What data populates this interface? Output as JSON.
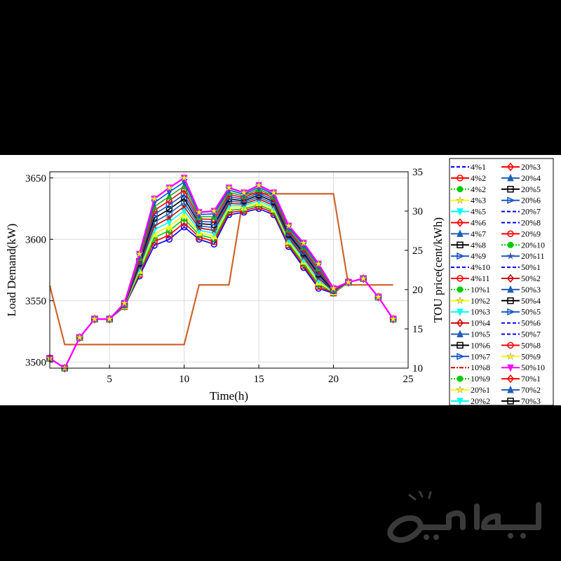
{
  "chart_data": {
    "type": "line",
    "xlabel": "Time(h)",
    "ylabel_left": "Load Demand(kW)",
    "ylabel_right": "TOU price(cent/kWh)",
    "xlim": [
      1,
      25
    ],
    "ylim_left": [
      3495,
      3655
    ],
    "ylim_right": [
      10,
      35
    ],
    "xticks": [
      5,
      10,
      15,
      20,
      25
    ],
    "yticks_left": [
      3500,
      3550,
      3600,
      3650
    ],
    "yticks_right": [
      10,
      15,
      20,
      25,
      30,
      35
    ],
    "grid": true,
    "legend_position": "right",
    "hours": [
      1,
      2,
      3,
      4,
      5,
      6,
      7,
      8,
      9,
      10,
      11,
      12,
      13,
      14,
      15,
      16,
      17,
      18,
      19,
      20,
      21,
      22,
      23,
      24
    ],
    "tou_price": {
      "x": [
        1,
        2,
        10,
        11,
        13,
        14,
        20,
        21,
        24
      ],
      "y": [
        20.5,
        13,
        13,
        20.6,
        20.6,
        32.2,
        32.2,
        20.6,
        20.6
      ],
      "color": "#d0652d"
    },
    "load_envelope": {
      "lower": [
        3503,
        3495,
        3520,
        3535,
        3535,
        3545,
        3570,
        3595,
        3600,
        3610,
        3600,
        3596,
        3620,
        3622,
        3625,
        3620,
        3594,
        3577,
        3560,
        3556,
        3565,
        3568,
        3553,
        3535
      ],
      "upper": [
        3503,
        3495,
        3520,
        3535,
        3535,
        3548,
        3588,
        3633,
        3642,
        3650,
        3622,
        3623,
        3642,
        3638,
        3644,
        3638,
        3611,
        3597,
        3580,
        3560,
        3565,
        3568,
        3553,
        3535
      ],
      "highlight": [
        3503,
        3495,
        3520,
        3535,
        3535,
        3548,
        3588,
        3633,
        3642,
        3650,
        3622,
        3623,
        3642,
        3638,
        3644,
        3638,
        3611,
        3597,
        3580,
        3560,
        3565,
        3568,
        3553,
        3535
      ],
      "highlight_color": "#ff00ff"
    },
    "series_colors": [
      "#0000ff",
      "#ff0000",
      "#00cc00",
      "#ffff00",
      "#00ffff",
      "#cc0000",
      "#1f5fb4",
      "#000000",
      "#1a55c8",
      "#ff0000",
      "#22aa22",
      "#0055cc",
      "#ff00ff"
    ],
    "legend": {
      "col1": [
        "4%1",
        "4%2",
        "4%2",
        "4%3",
        "4%5",
        "4%6",
        "4%7",
        "4%8",
        "4%9",
        "4%10",
        "4%11",
        "10%1",
        "10%2",
        "10%3",
        "10%4",
        "10%5",
        "10%6",
        "10%7",
        "10%8",
        "10%9",
        "20%1",
        "20%2"
      ],
      "col2": [
        "20%3",
        "20%4",
        "20%5",
        "20%6",
        "20%7",
        "20%8",
        "20%9",
        "20%10",
        "20%11",
        "50%1",
        "50%2",
        "50%3",
        "50%4",
        "50%5",
        "50%6",
        "50%7",
        "50%8",
        "50%9",
        "50%10",
        "70%1",
        "70%2",
        "70%3"
      ],
      "col1_markers": [
        [
          "dash",
          "#0000ff"
        ],
        [
          "circle",
          "#ff0000"
        ],
        [
          "dot",
          "#00cc00"
        ],
        [
          "star",
          "#ffff00"
        ],
        [
          "tri-down",
          "#00ffff"
        ],
        [
          "diamond",
          "#ff0000"
        ],
        [
          "tri-up",
          "#1f5fb4"
        ],
        [
          "square",
          "#000000"
        ],
        [
          "tri-right",
          "#1a55c8"
        ],
        [
          "dash",
          "#0000ff"
        ],
        [
          "circle",
          "#ff0000"
        ],
        [
          "dot",
          "#00cc00"
        ],
        [
          "star",
          "#ffff00"
        ],
        [
          "tri-down",
          "#00ffff"
        ],
        [
          "diamond",
          "#cc0000"
        ],
        [
          "tri-up",
          "#1f5fb4"
        ],
        [
          "square",
          "#000000"
        ],
        [
          "tri-right",
          "#1a55c8"
        ],
        [
          "dashdot",
          "#cc0000"
        ],
        [
          "dot",
          "#00cc00"
        ],
        [
          "star",
          "#ffff00"
        ],
        [
          "tri-down",
          "#00ffff"
        ]
      ],
      "col2_markers": [
        [
          "diamond",
          "#ff0000"
        ],
        [
          "tri-up",
          "#1f5fb4"
        ],
        [
          "square",
          "#000000"
        ],
        [
          "tri-right",
          "#1a55c8"
        ],
        [
          "dash",
          "#0000ff"
        ],
        [
          "dash",
          "#0000ff"
        ],
        [
          "circle",
          "#ff0000"
        ],
        [
          "dot",
          "#00cc00"
        ],
        [
          "hexagram",
          "#1a55c8"
        ],
        [
          "dash",
          "#0000ff"
        ],
        [
          "diamond",
          "#cc0000"
        ],
        [
          "tri-up",
          "#1f5fb4"
        ],
        [
          "square",
          "#000000"
        ],
        [
          "tri-right",
          "#1a55c8"
        ],
        [
          "dash",
          "#0000ff"
        ],
        [
          "dash",
          "#0000ff"
        ],
        [
          "circle",
          "#ff0000"
        ],
        [
          "star",
          "#ffff00"
        ],
        [
          "tri-down",
          "#ff00ff"
        ],
        [
          "diamond",
          "#ff0000"
        ],
        [
          "tri-up",
          "#1f5fb4"
        ],
        [
          "square",
          "#000000"
        ]
      ]
    }
  }
}
